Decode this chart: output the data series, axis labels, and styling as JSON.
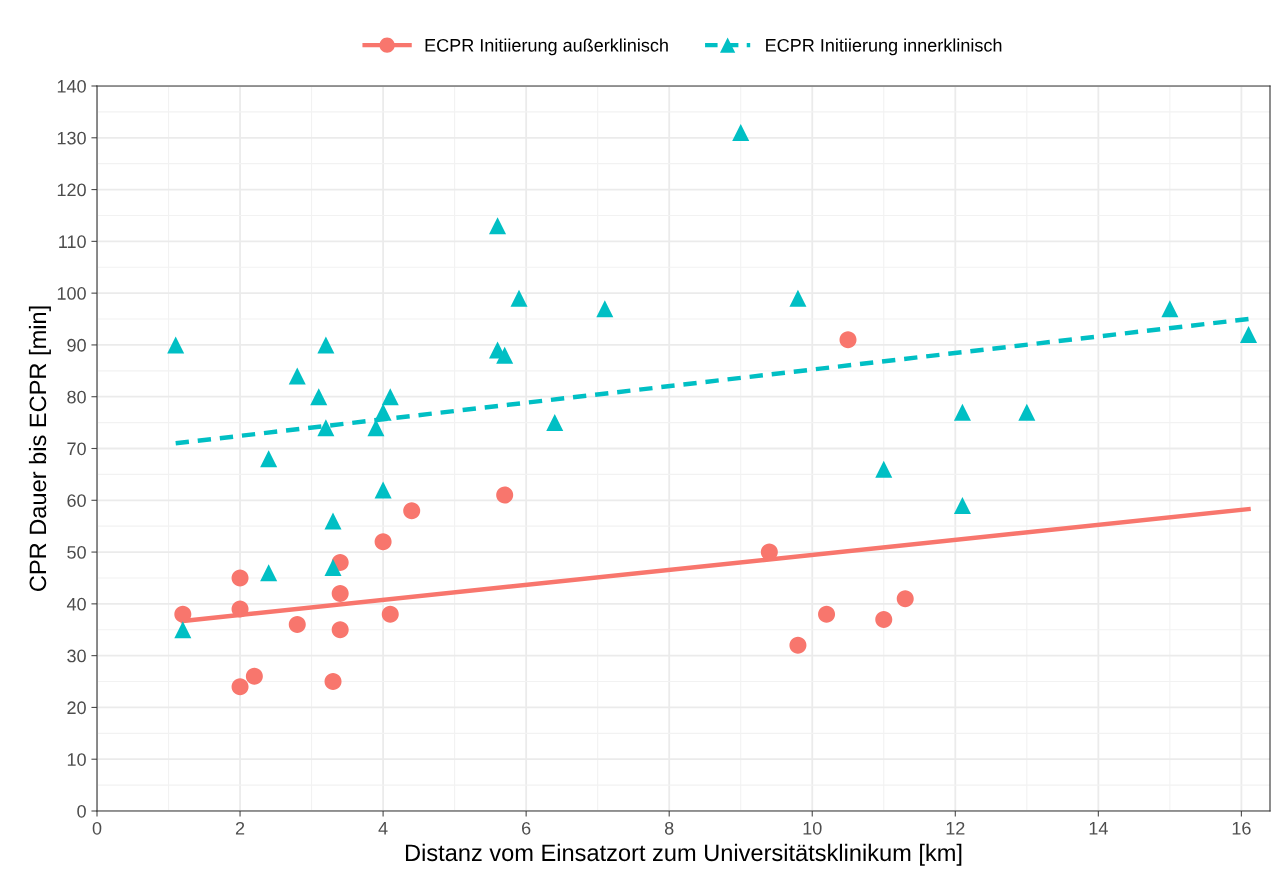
{
  "chart_data": {
    "type": "scatter",
    "xlabel": "Distanz vom Einsatzort zum Universitätsklinikum [km]",
    "ylabel": "CPR Dauer bis ECPR [min]",
    "xlim": [
      0,
      16.4
    ],
    "ylim": [
      0,
      140
    ],
    "xticks": [
      0,
      2,
      4,
      6,
      8,
      10,
      12,
      14,
      16
    ],
    "yticks": [
      0,
      10,
      20,
      30,
      40,
      50,
      60,
      70,
      80,
      90,
      100,
      110,
      120,
      130,
      140
    ],
    "grid": true,
    "legend": "top",
    "series": [
      {
        "name": "ECPR Initiierung außerklinisch",
        "color": "#f8766d",
        "marker": "circle",
        "x": [
          1.2,
          2,
          2,
          2,
          2.2,
          2.8,
          3.3,
          3.4,
          3.4,
          3.4,
          4,
          4.1,
          4.4,
          5.7,
          9.4,
          9.8,
          10.2,
          10.5,
          11,
          11.3
        ],
        "values": [
          38,
          45,
          39,
          24,
          26,
          36,
          25,
          48,
          42,
          35,
          52,
          38,
          58,
          61,
          50,
          32,
          38,
          91,
          37,
          41
        ]
      },
      {
        "name": "ECPR Initiierung innerklinisch",
        "color": "#00bfc4",
        "marker": "triangle",
        "x": [
          1.1,
          1.2,
          2.4,
          2.4,
          2.8,
          3.1,
          3.2,
          3.2,
          3.3,
          3.3,
          3.9,
          4.0,
          4.1,
          4.0,
          5.6,
          5.6,
          5.7,
          5.9,
          6.4,
          7.1,
          9.0,
          9.8,
          11,
          12.1,
          12.1,
          13,
          15,
          16.1
        ],
        "values": [
          90,
          35,
          68,
          46,
          84,
          80,
          90,
          74,
          56,
          47,
          74,
          77,
          80,
          62,
          113,
          89,
          88,
          99,
          75,
          97,
          131,
          99,
          66,
          77,
          59,
          77,
          97,
          92
        ]
      },
      {
        "type": "line",
        "color": "#f8766d",
        "line_style": "solid",
        "x": [
          1.2,
          16.1
        ],
        "values": [
          36.7,
          58.3
        ]
      },
      {
        "type": "line",
        "color": "#00bfc4",
        "line_style": "dashed",
        "x": [
          1.1,
          16.1
        ],
        "values": [
          71,
          95
        ]
      }
    ]
  }
}
